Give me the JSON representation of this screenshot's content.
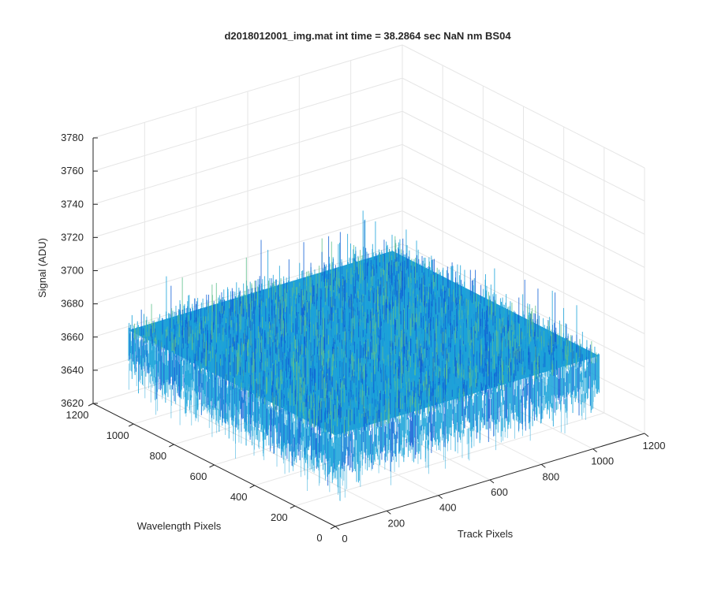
{
  "chart_data": {
    "type": "surface",
    "title": "d2018012001_img.mat int time = 38.2864 sec  NaN nm BS04",
    "xlabel": "Track Pixels",
    "ylabel": "Wavelength Pixels",
    "zlabel": "Signal (ADU)",
    "xlim": [
      0,
      1200
    ],
    "ylim": [
      0,
      1200
    ],
    "zlim": [
      3620,
      3780
    ],
    "xticks": [
      "0",
      "200",
      "400",
      "600",
      "800",
      "1000",
      "1200"
    ],
    "yticks": [
      "0",
      "200",
      "400",
      "600",
      "800",
      "1000",
      "1200"
    ],
    "zticks": [
      "3620",
      "3640",
      "3660",
      "3680",
      "3700",
      "3720",
      "3740",
      "3760",
      "3780"
    ],
    "data_extent": {
      "x": [
        0,
        1024
      ],
      "y": [
        0,
        1024
      ]
    },
    "signal_baseline": 3665,
    "signal_noise_range": [
      3630,
      3745
    ],
    "grid": true,
    "colormap": "parula",
    "colors": {
      "low": "#0f5fd6",
      "mid": "#1aa3d9",
      "high": "#5fc08c",
      "axis": "#262626",
      "grid": "#e6e6e6"
    }
  }
}
